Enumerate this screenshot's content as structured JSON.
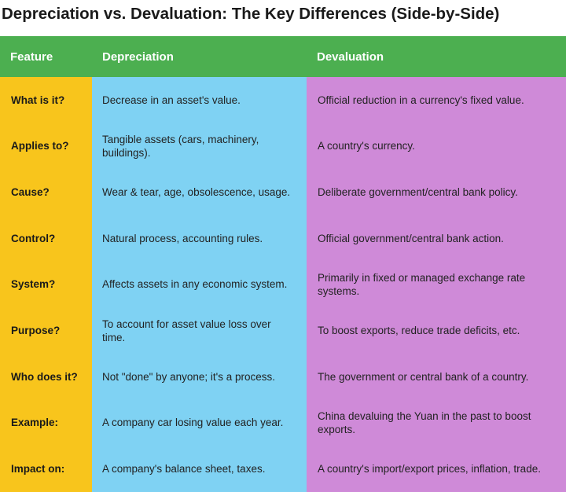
{
  "title": "Depreciation vs. Devaluation: The Key Differences (Side-by-Side)",
  "headers": [
    "Feature",
    "Depreciation",
    "Devaluation"
  ],
  "rows": [
    {
      "feature": "What is it?",
      "depreciation": "Decrease in an asset's value.",
      "devaluation": "Official reduction in a currency's fixed value."
    },
    {
      "feature": "Applies to?",
      "depreciation": "Tangible assets (cars, machinery, buildings).",
      "devaluation": "A country's currency."
    },
    {
      "feature": "Cause?",
      "depreciation": "Wear & tear, age, obsolescence, usage.",
      "devaluation": "Deliberate government/central bank policy."
    },
    {
      "feature": "Control?",
      "depreciation": "Natural process, accounting rules.",
      "devaluation": "Official government/central bank action."
    },
    {
      "feature": "System?",
      "depreciation": "Affects assets in any economic system.",
      "devaluation": "Primarily in fixed or managed exchange rate systems."
    },
    {
      "feature": "Purpose?",
      "depreciation": "To account for asset value loss over time.",
      "devaluation": "To boost exports, reduce trade deficits, etc."
    },
    {
      "feature": "Who does it?",
      "depreciation": "Not \"done\" by anyone; it's a process.",
      "devaluation": "The government or central bank of a country."
    },
    {
      "feature": "Example:",
      "depreciation": "A company car losing value each year.",
      "devaluation": "China devaluing the Yuan in the past to boost exports."
    },
    {
      "feature": "Impact on:",
      "depreciation": "A company's balance sheet, taxes.",
      "devaluation": "A country's import/export prices, inflation, trade."
    }
  ],
  "colors": {
    "header": "#4caf50",
    "feature_column": "#f8c51c",
    "depreciation_column": "#7fd2f3",
    "devaluation_column": "#cf8ad8"
  }
}
